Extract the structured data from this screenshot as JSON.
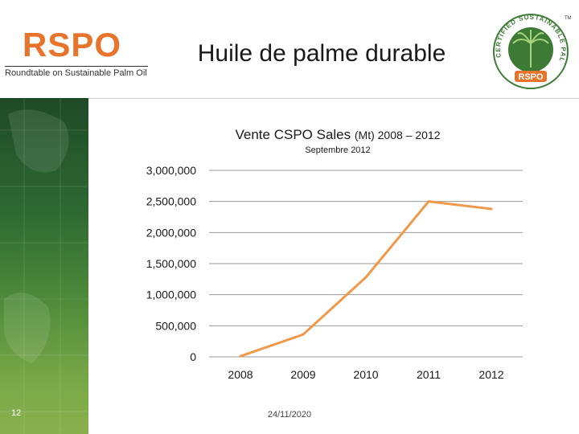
{
  "header": {
    "logo_text": "RSPO",
    "logo_subtitle": "Roundtable on Sustainable Palm Oil",
    "title": "Huile de palme durable",
    "cert_logo_text": "CERTIFIED SUSTAINABLE PALM OIL",
    "cert_logo_brand": "RSPO",
    "cert_logo_mark": "TM"
  },
  "side_panel": {
    "icon": "world-map-pattern"
  },
  "colors": {
    "accent": "#e8732a",
    "line": "#f0994a",
    "grid": "#9a9a9a",
    "panel": "#2f6a33"
  },
  "chart_data": {
    "type": "line",
    "title_main": "Vente CSPO Sales",
    "title_unit": "(Mt) 2008 – 2012",
    "subtitle": "Septembre 2012",
    "categories": [
      "2008",
      "2009",
      "2010",
      "2011",
      "2012"
    ],
    "values": [
      10000,
      360000,
      1280000,
      2500000,
      2380000
    ],
    "yticks": [
      "0",
      "500,000",
      "1,000,000",
      "1,500,000",
      "2,000,000",
      "2,500,000",
      "3,000,000"
    ],
    "ylim": [
      0,
      3000000
    ],
    "grid": true,
    "legend": "none"
  },
  "footer": {
    "slide_number": "12",
    "date": "24/11/2020"
  }
}
